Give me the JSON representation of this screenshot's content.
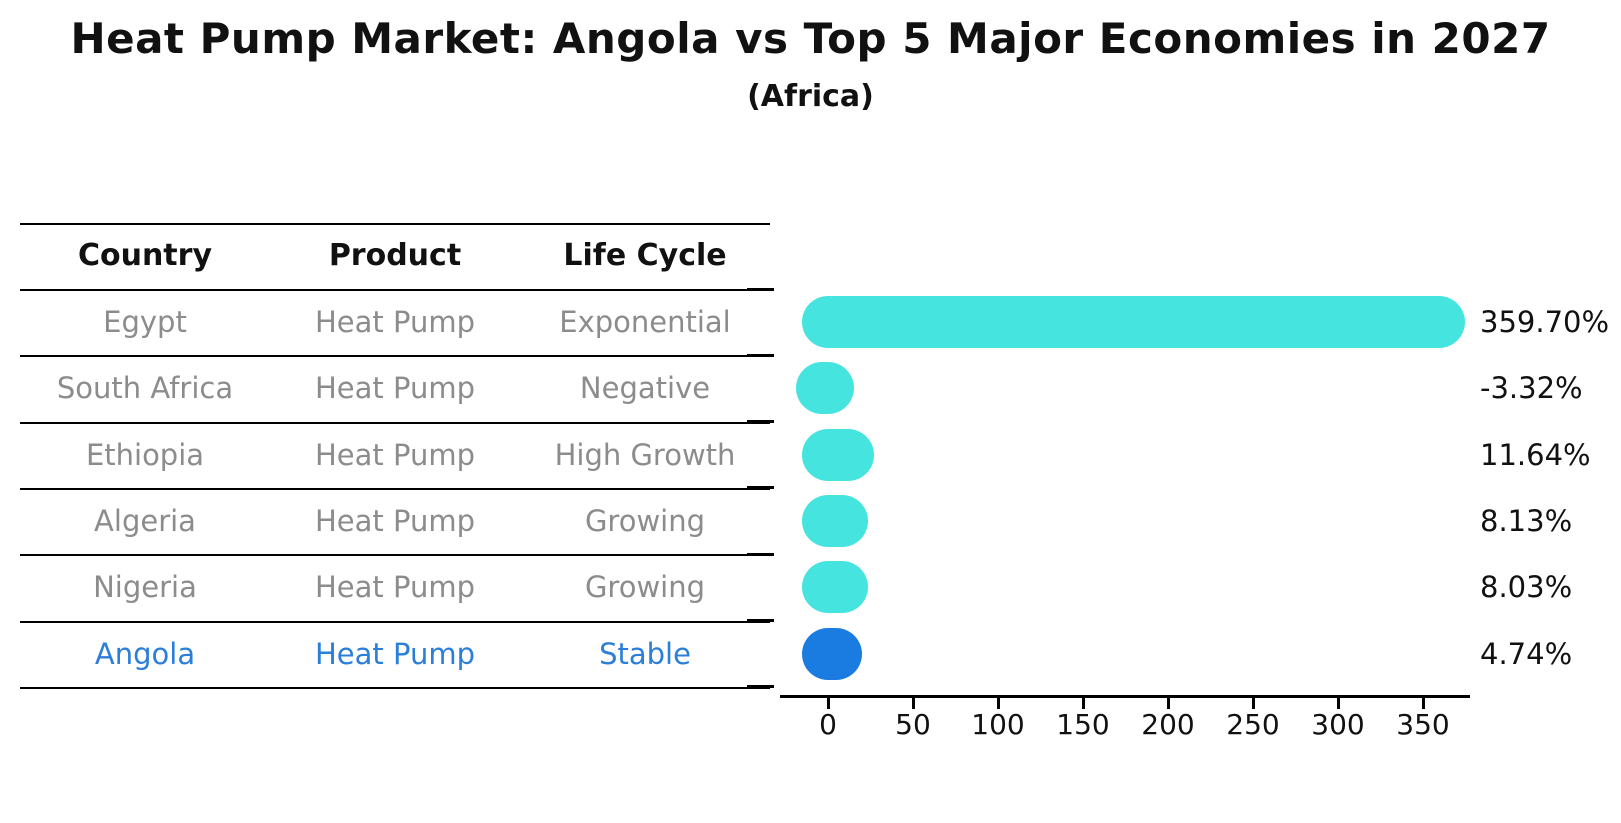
{
  "title": "Heat Pump Market: Angola vs Top 5 Major Economies in 2027",
  "subtitle": "(Africa)",
  "colors": {
    "bar_default": "#45E4DF",
    "bar_highlight": "#1A7BE0",
    "highlight_text": "#2B7FD9",
    "row_text": "#8C8C8C",
    "header_text": "#111111",
    "axis": "#000000"
  },
  "table": {
    "columns": [
      "Country",
      "Product",
      "Life Cycle"
    ],
    "rows": [
      {
        "country": "Egypt",
        "product": "Heat Pump",
        "life_cycle": "Exponential",
        "highlight": false
      },
      {
        "country": "South Africa",
        "product": "Heat Pump",
        "life_cycle": "Negative",
        "highlight": false
      },
      {
        "country": "Ethiopia",
        "product": "Heat Pump",
        "life_cycle": "High Growth",
        "highlight": false
      },
      {
        "country": "Algeria",
        "product": "Heat Pump",
        "life_cycle": "Growing",
        "highlight": false
      },
      {
        "country": "Nigeria",
        "product": "Heat Pump",
        "life_cycle": "Growing",
        "highlight": false
      },
      {
        "country": "Angola",
        "product": "Heat Pump",
        "life_cycle": "Stable",
        "highlight": true
      }
    ]
  },
  "chart_data": {
    "type": "bar",
    "orientation": "horizontal",
    "title": "Heat Pump Market: Angola vs Top 5 Major Economies in 2027",
    "subtitle": "(Africa)",
    "categories": [
      "Egypt",
      "South Africa",
      "Ethiopia",
      "Algeria",
      "Nigeria",
      "Angola"
    ],
    "values": [
      359.7,
      -3.32,
      11.64,
      8.13,
      8.03,
      4.74
    ],
    "value_labels": [
      "359.70%",
      "-3.32%",
      "11.64%",
      "8.13%",
      "8.03%",
      "4.74%"
    ],
    "x_ticks": [
      0,
      50,
      100,
      150,
      200,
      250,
      300,
      350
    ],
    "xlim": [
      -31,
      378
    ],
    "xlabel": "",
    "ylabel": "",
    "grid": false,
    "legend": null,
    "highlight_index": 5,
    "bar_style": "rounded-capsule"
  }
}
